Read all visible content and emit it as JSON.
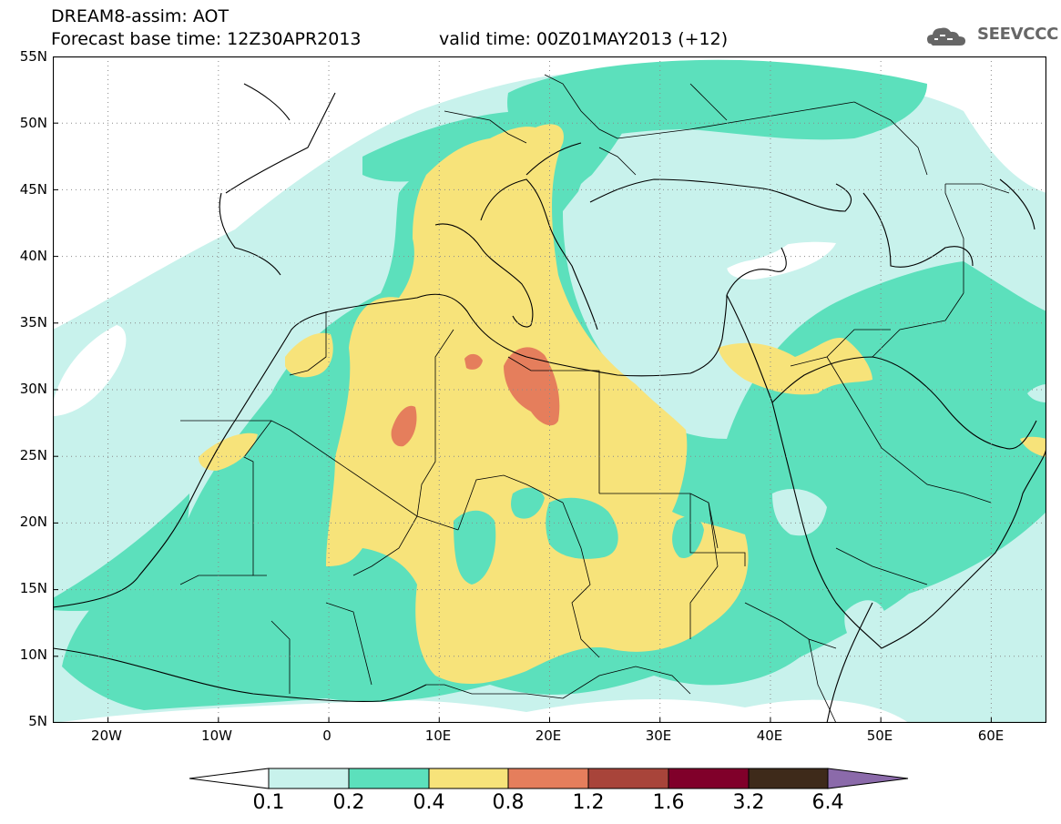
{
  "header": {
    "title_line1": "DREAM8-assim: AOT",
    "title_line2": "Forecast base time: 12Z30APR2013",
    "valid_time": "valid time: 00Z01MAY2013 (+12)",
    "logo_text": "SEEVCCC"
  },
  "map": {
    "extent_lon": [
      -25,
      65
    ],
    "extent_lat": [
      5,
      55
    ],
    "lat_labels": [
      "55N",
      "50N",
      "45N",
      "40N",
      "35N",
      "30N",
      "25N",
      "20N",
      "15N",
      "10N",
      "5N"
    ],
    "lon_labels": [
      "20W",
      "10W",
      "0",
      "10E",
      "20E",
      "30E",
      "40E",
      "50E",
      "60E"
    ],
    "gridlines": "dotted"
  },
  "colorbar": {
    "labels": [
      "0.1",
      "0.2",
      "0.4",
      "0.8",
      "1.2",
      "1.6",
      "3.2",
      "6.4"
    ],
    "colors": [
      "#ffffff",
      "#c8f2ec",
      "#5ce0bc",
      "#f7e37a",
      "#e57e5c",
      "#a8443a",
      "#80002a",
      "#3e2a1a",
      "#8b6aaa"
    ]
  },
  "colors": {
    "land_bg": "#ffffff",
    "level_0_1": "#c8f2ec",
    "level_0_2": "#5ce0bc",
    "level_0_4": "#f7e37a",
    "level_0_8": "#e57e5c"
  }
}
